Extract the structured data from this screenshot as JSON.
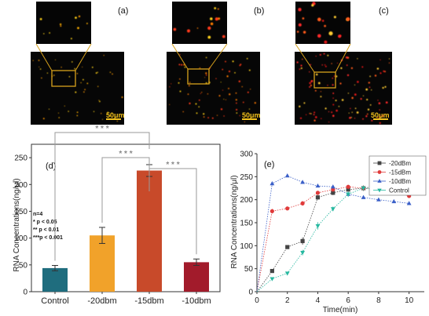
{
  "panel_labels": {
    "a": "(a)",
    "b": "(b)",
    "c": "(c)",
    "d": "(d)",
    "e": "(e)"
  },
  "scale_bar_label": "50μm",
  "colors": {
    "Control": "#1f6d7e",
    "-20dbm": "#f1a22a",
    "-15dbm": "#c84a2a",
    "-10dbm": "#a21b2b",
    "series_-20dBm": "#444444",
    "series_-15dBm": "#e03a3a",
    "series_-10dBm": "#3a5fc8",
    "series_Control": "#26b8a0",
    "zoom_box": "#d8a21c"
  },
  "chart_data": [
    {
      "type": "bar",
      "panel": "(d)",
      "categories": [
        "Control",
        "-20dbm",
        "-15dbm",
        "-10dbm"
      ],
      "values": [
        44,
        105,
        226,
        55
      ],
      "errors": [
        5,
        15,
        11,
        6
      ],
      "ylabel": "RNA Concentrations(ng/μl)",
      "xlabel": "",
      "ylim": [
        0,
        275
      ],
      "yticks": [
        0,
        50,
        100,
        150,
        200,
        250
      ],
      "stats_note": [
        "n=4",
        "*  p < 0.05",
        "** p < 0.01",
        "***p < 0.001"
      ],
      "significance": [
        {
          "from": "Control",
          "to": "-15dbm",
          "label": "* * *"
        },
        {
          "from": "-20dbm",
          "to": "-15dbm",
          "label": "* * *"
        },
        {
          "from": "-15dbm",
          "to": "-10dbm",
          "label": "* * *"
        }
      ]
    },
    {
      "type": "line",
      "panel": "(e)",
      "xlabel": "Time(min)",
      "ylabel": "RNA Concentrations(ng/μl)",
      "xlim": [
        0,
        11
      ],
      "ylim": [
        0,
        300
      ],
      "xticks": [
        0,
        2,
        4,
        6,
        8,
        10
      ],
      "yticks": [
        0,
        50,
        100,
        150,
        200,
        250,
        300
      ],
      "legend_position": "top-right",
      "x": [
        0,
        1,
        2,
        3,
        4,
        5,
        6,
        7,
        8,
        9,
        10
      ],
      "series": [
        {
          "name": "-20dBm",
          "marker": "square",
          "values": [
            0,
            45,
            97,
            110,
            205,
            215,
            222,
            225,
            230,
            230,
            218
          ],
          "errors": [
            0,
            4,
            3,
            8,
            5,
            5,
            4,
            6,
            7,
            6,
            4
          ]
        },
        {
          "name": "-15dBm",
          "marker": "circle",
          "values": [
            0,
            175,
            181,
            192,
            215,
            222,
            228,
            225,
            222,
            218,
            208
          ],
          "errors": [
            0,
            5,
            4,
            5,
            4,
            4,
            4,
            4,
            4,
            4,
            4
          ]
        },
        {
          "name": "-10dBm",
          "marker": "triangle",
          "values": [
            0,
            235,
            252,
            238,
            230,
            228,
            212,
            205,
            200,
            196,
            192
          ],
          "errors": [
            0,
            4,
            3,
            3,
            3,
            3,
            3,
            3,
            3,
            3,
            3
          ]
        },
        {
          "name": "Control",
          "marker": "tri-down",
          "values": [
            0,
            28,
            40,
            85,
            143,
            180,
            212,
            225,
            222,
            222,
            218
          ],
          "errors": [
            0,
            3,
            3,
            6,
            8,
            5,
            6,
            5,
            4,
            4,
            4
          ]
        }
      ]
    }
  ]
}
